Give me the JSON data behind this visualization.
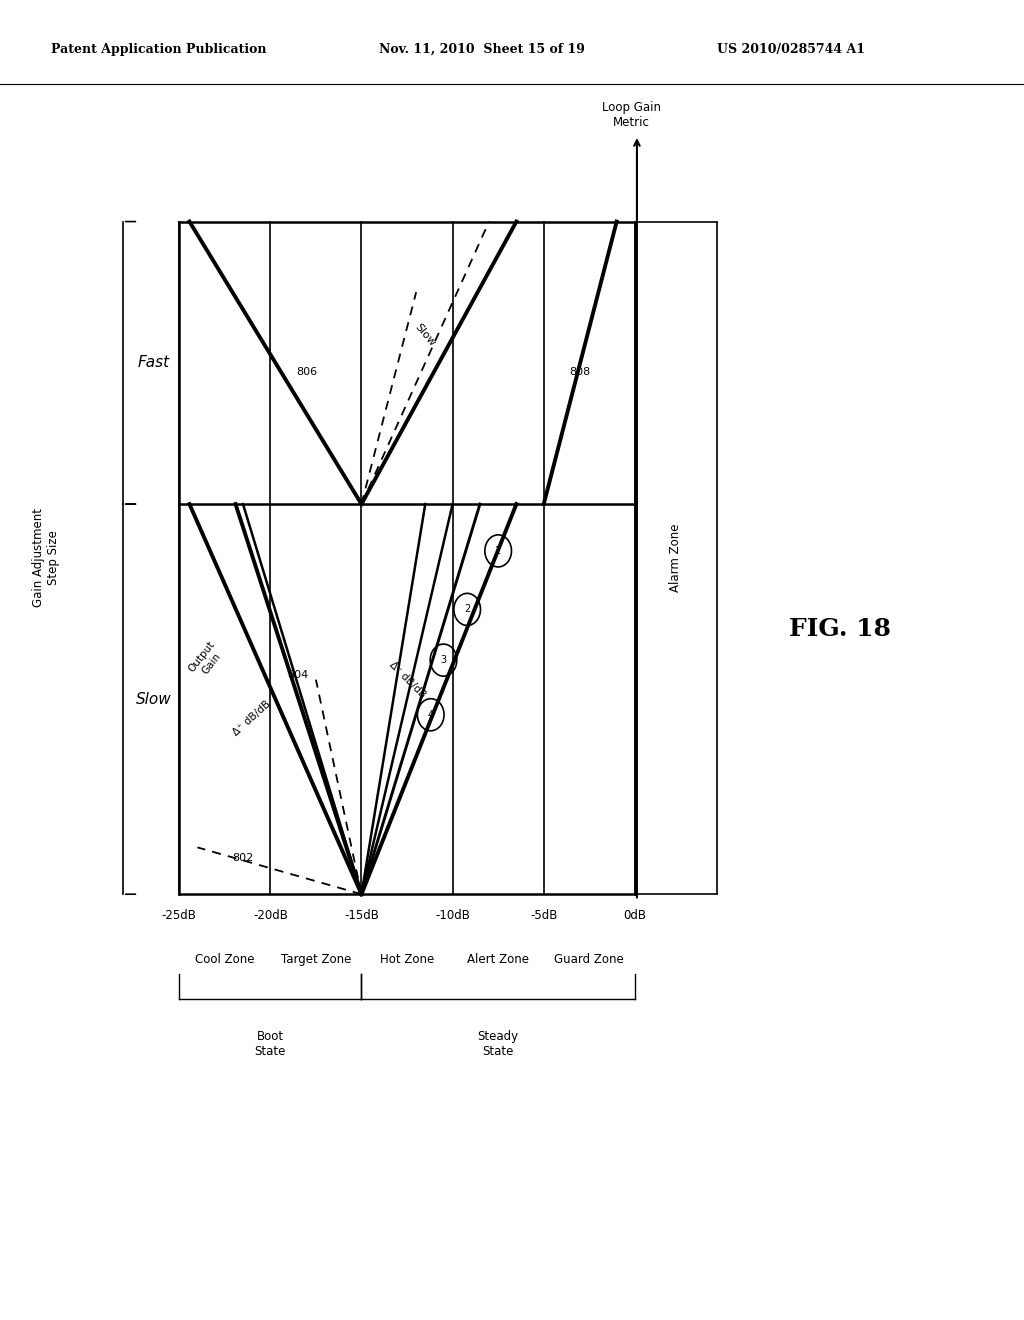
{
  "header_left": "Patent Application Publication",
  "header_mid": "Nov. 11, 2010  Sheet 15 of 19",
  "header_right": "US 2010/0285744 A1",
  "fig_label": "FIG. 18",
  "y_axis_label": "Loop Gain\nMetric",
  "x_axis_label": "Gain Adjustment\nStep Size",
  "zones": [
    "Cool Zone",
    "Target Zone",
    "Hot Zone",
    "Alert Zone",
    "Guard Zone",
    "Alarm Zone"
  ],
  "zone_dbs": [
    -25,
    -20,
    -15,
    -10,
    -5,
    0
  ],
  "zone_mid_dbs": [
    -22.5,
    -17.5,
    -12.5,
    -7.5,
    -2.5
  ],
  "db_labels": [
    "-25dB",
    "-20dB",
    "-15dB",
    "-10dB",
    "-5dB",
    "0dB"
  ],
  "background_color": "#ffffff"
}
